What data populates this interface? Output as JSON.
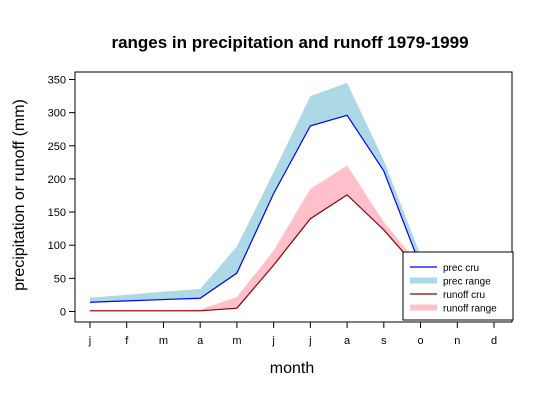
{
  "chart_data": {
    "type": "line",
    "title": "ranges in precipitation and runoff 1979-1999",
    "xlabel": "month",
    "ylabel": "precipitation or runoff (mm)",
    "categories": [
      "j",
      "f",
      "m",
      "a",
      "m",
      "j",
      "j",
      "a",
      "s",
      "o",
      "n",
      "d"
    ],
    "yticks": [
      "0",
      "50",
      "100",
      "150",
      "200",
      "250",
      "300",
      "350"
    ],
    "ylim": [
      0,
      350
    ],
    "grid": false,
    "legend_position": "bottom-right",
    "series": [
      {
        "name": "prec cru",
        "kind": "line",
        "color": "#0000ff",
        "values": [
          14,
          16,
          18,
          20,
          58,
          178,
          280,
          296,
          212,
          68,
          30,
          20
        ]
      },
      {
        "name": "prec range",
        "kind": "band",
        "color": "#add8e6",
        "low": [
          14,
          16,
          18,
          20,
          58,
          178,
          280,
          296,
          212,
          68,
          30,
          20
        ],
        "high": [
          21,
          25,
          30,
          34,
          98,
          210,
          325,
          345,
          228,
          85,
          40,
          28
        ]
      },
      {
        "name": "runoff cru",
        "kind": "line",
        "color": "#8b0000",
        "values": [
          1,
          1,
          1,
          1,
          5,
          70,
          140,
          176,
          123,
          60,
          8,
          2
        ]
      },
      {
        "name": "runoff range",
        "kind": "band",
        "color": "#ffc0cb",
        "low": [
          1,
          1,
          1,
          1,
          5,
          70,
          140,
          176,
          123,
          60,
          8,
          2
        ],
        "high": [
          2,
          2,
          2,
          3,
          22,
          92,
          185,
          220,
          135,
          68,
          12,
          4
        ]
      }
    ]
  }
}
